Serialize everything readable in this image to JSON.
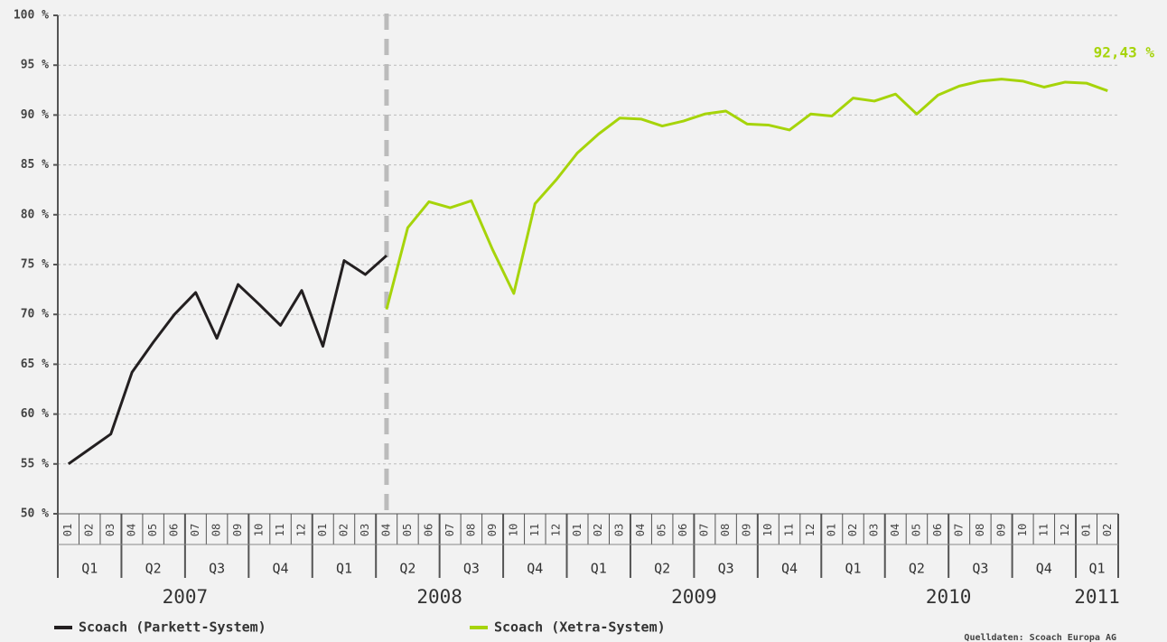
{
  "chart_data": {
    "type": "line",
    "categories": [
      "01",
      "02",
      "03",
      "04",
      "05",
      "06",
      "07",
      "08",
      "09",
      "10",
      "11",
      "12",
      "01",
      "02",
      "03",
      "04",
      "05",
      "06",
      "07",
      "08",
      "09",
      "10",
      "11",
      "12",
      "01",
      "02",
      "03",
      "04",
      "05",
      "06",
      "07",
      "08",
      "09",
      "10",
      "11",
      "12",
      "01",
      "02",
      "03",
      "04",
      "05",
      "06",
      "07",
      "08",
      "09",
      "10",
      "11",
      "12",
      "01",
      "02"
    ],
    "quarters": [
      "Q1",
      "Q2",
      "Q3",
      "Q4",
      "Q1",
      "Q2",
      "Q3",
      "Q4",
      "Q1",
      "Q2",
      "Q3",
      "Q4",
      "Q1",
      "Q2",
      "Q3",
      "Q4",
      "Q1"
    ],
    "years": [
      "2007",
      "2008",
      "2009",
      "2010",
      "2011"
    ],
    "series": [
      {
        "name": "Scoach (Parkett-System)",
        "color": "#231f20",
        "values": [
          55,
          56.5,
          58,
          64.2,
          67.2,
          70,
          72.2,
          67.6,
          73,
          71,
          68.9,
          72.4,
          66.8,
          75.4,
          74,
          75.9,
          null,
          null,
          null,
          null,
          null,
          null,
          null,
          null,
          null,
          null,
          null,
          null,
          null,
          null,
          null,
          null,
          null,
          null,
          null,
          null,
          null,
          null,
          null,
          null,
          null,
          null,
          null,
          null,
          null,
          null,
          null,
          null,
          null,
          null
        ]
      },
      {
        "name": "Scoach (Xetra-System)",
        "color": "#a6d40a",
        "values": [
          null,
          null,
          null,
          null,
          null,
          null,
          null,
          null,
          null,
          null,
          null,
          null,
          null,
          null,
          null,
          70.5,
          78.7,
          81.3,
          80.7,
          81.4,
          76.5,
          72.1,
          81.1,
          83.5,
          86.2,
          88.1,
          89.7,
          89.6,
          88.9,
          89.4,
          90.1,
          90.4,
          89.1,
          89,
          88.5,
          90.1,
          89.9,
          91.7,
          91.4,
          92.1,
          90.1,
          92,
          92.9,
          93.4,
          93.6,
          93.4,
          92.8,
          93.3,
          93.2,
          92.43
        ],
        "value_labels": [
          null,
          null,
          null,
          null,
          null,
          null,
          null,
          null,
          null,
          null,
          null,
          null,
          null,
          null,
          null,
          null,
          null,
          null,
          null,
          null,
          null,
          null,
          null,
          null,
          null,
          null,
          null,
          null,
          null,
          null,
          null,
          null,
          null,
          null,
          null,
          null,
          null,
          null,
          null,
          null,
          null,
          null,
          null,
          null,
          null,
          null,
          null,
          null,
          null,
          "92,43 %"
        ]
      }
    ],
    "ylim": [
      50,
      100
    ],
    "yticks": [
      {
        "value": 50,
        "label": "50 %"
      },
      {
        "value": 55,
        "label": "55 %"
      },
      {
        "value": 60,
        "label": "60 %"
      },
      {
        "value": 65,
        "label": "65 %"
      },
      {
        "value": 70,
        "label": "70 %"
      },
      {
        "value": 75,
        "label": "75 %"
      },
      {
        "value": 80,
        "label": "80 %"
      },
      {
        "value": 85,
        "label": "85 %"
      },
      {
        "value": 90,
        "label": "90 %"
      },
      {
        "value": 95,
        "label": "95 %"
      },
      {
        "value": 100,
        "label": "100 %"
      }
    ],
    "grid": true,
    "source": "Quelldaten: Scoach Europa AG"
  }
}
